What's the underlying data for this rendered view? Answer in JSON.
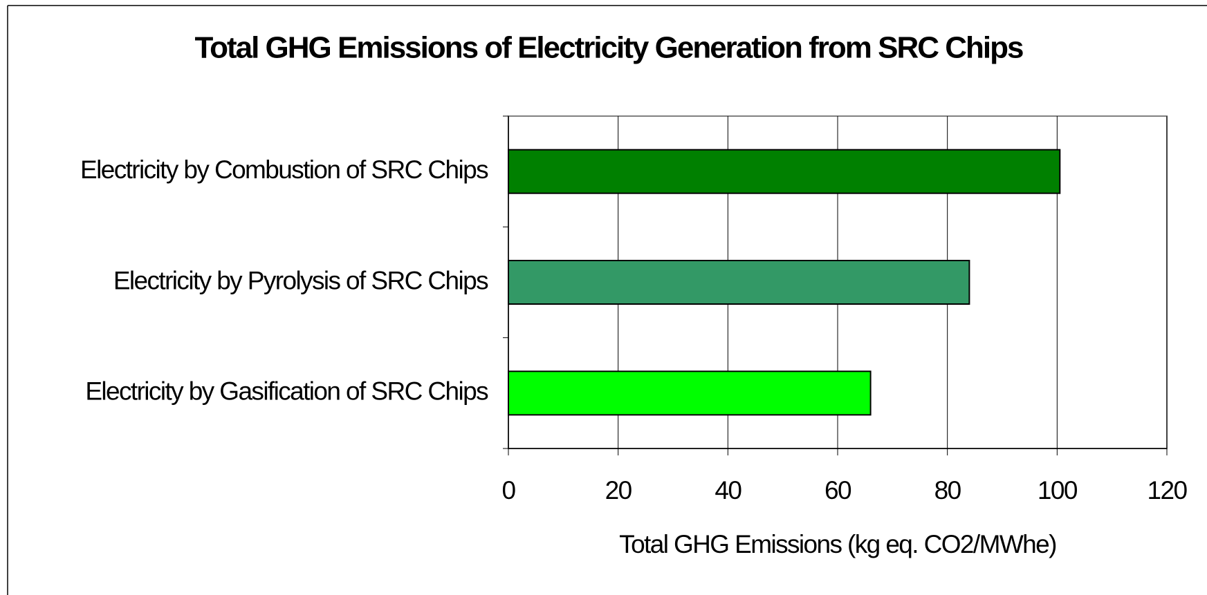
{
  "chart_data": {
    "type": "bar",
    "orientation": "horizontal",
    "title": "Total GHG Emissions of Electricity Generation from SRC Chips",
    "categories": [
      "Electricity by Combustion of SRC Chips",
      "Electricity by Pyrolysis of SRC Chips",
      "Electricity by Gasification of SRC Chips"
    ],
    "values": [
      100.5,
      84,
      66
    ],
    "colors": [
      "#008000",
      "#339966",
      "#00ff00"
    ],
    "xlabel": "Total GHG Emissions (kg eq. CO2/MWhe)",
    "xlim": [
      0,
      120
    ],
    "xticks": [
      0,
      20,
      40,
      60,
      80,
      100,
      120
    ],
    "grid": true
  }
}
